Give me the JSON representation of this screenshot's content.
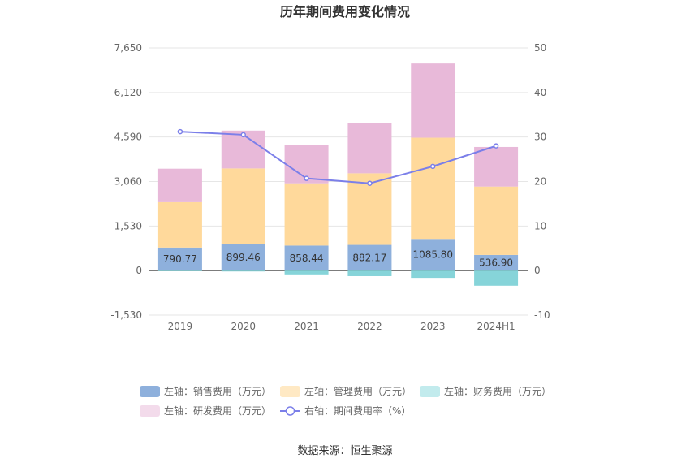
{
  "chart_data": {
    "type": "bar",
    "title": "历年期间费用变化情况",
    "categories": [
      "2019",
      "2020",
      "2021",
      "2022",
      "2023",
      "2024H1"
    ],
    "left_axis": {
      "ylim": [
        -1530,
        7650
      ],
      "ticks": [
        "7,650",
        "6,120",
        "4,590",
        "3,060",
        "1,530",
        "0",
        "-1,530"
      ]
    },
    "right_axis": {
      "ylim": [
        -10,
        50
      ],
      "ticks": [
        "50",
        "40",
        "30",
        "20",
        "10",
        "0",
        "-10"
      ]
    },
    "series": [
      {
        "name": "左轴：销售费用（万元）",
        "axis": "left",
        "type": "bar",
        "color": "#8eb0dc",
        "values": [
          790.77,
          899.46,
          858.44,
          882.17,
          1085.8,
          536.9
        ],
        "labels": [
          "790.77",
          "899.46",
          "858.44",
          "882.17",
          "1085.80",
          "536.90"
        ]
      },
      {
        "name": "左轴：管理费用（万元）",
        "axis": "left",
        "type": "bar",
        "color": "#ffd99b",
        "values": [
          1560,
          2610,
          2140,
          2460,
          3480,
          2350
        ]
      },
      {
        "name": "左轴：财务费用（万元）",
        "axis": "left",
        "type": "bar",
        "color": "#86d4d9",
        "values": [
          -20,
          -30,
          -130,
          -190,
          -250,
          -520
        ]
      },
      {
        "name": "左轴：研发费用（万元）",
        "axis": "left",
        "type": "bar",
        "color": "#e8b9d9",
        "values": [
          1150,
          1300,
          1310,
          1730,
          2550,
          1360
        ]
      },
      {
        "name": "右轴：期间费用率（%）",
        "axis": "right",
        "type": "line",
        "color": "#7b7fe9",
        "values": [
          31.2,
          30.5,
          20.7,
          19.6,
          23.4,
          28.0
        ]
      }
    ],
    "legend_position": "bottom",
    "grid": true
  },
  "source": "数据来源：恒生聚源"
}
